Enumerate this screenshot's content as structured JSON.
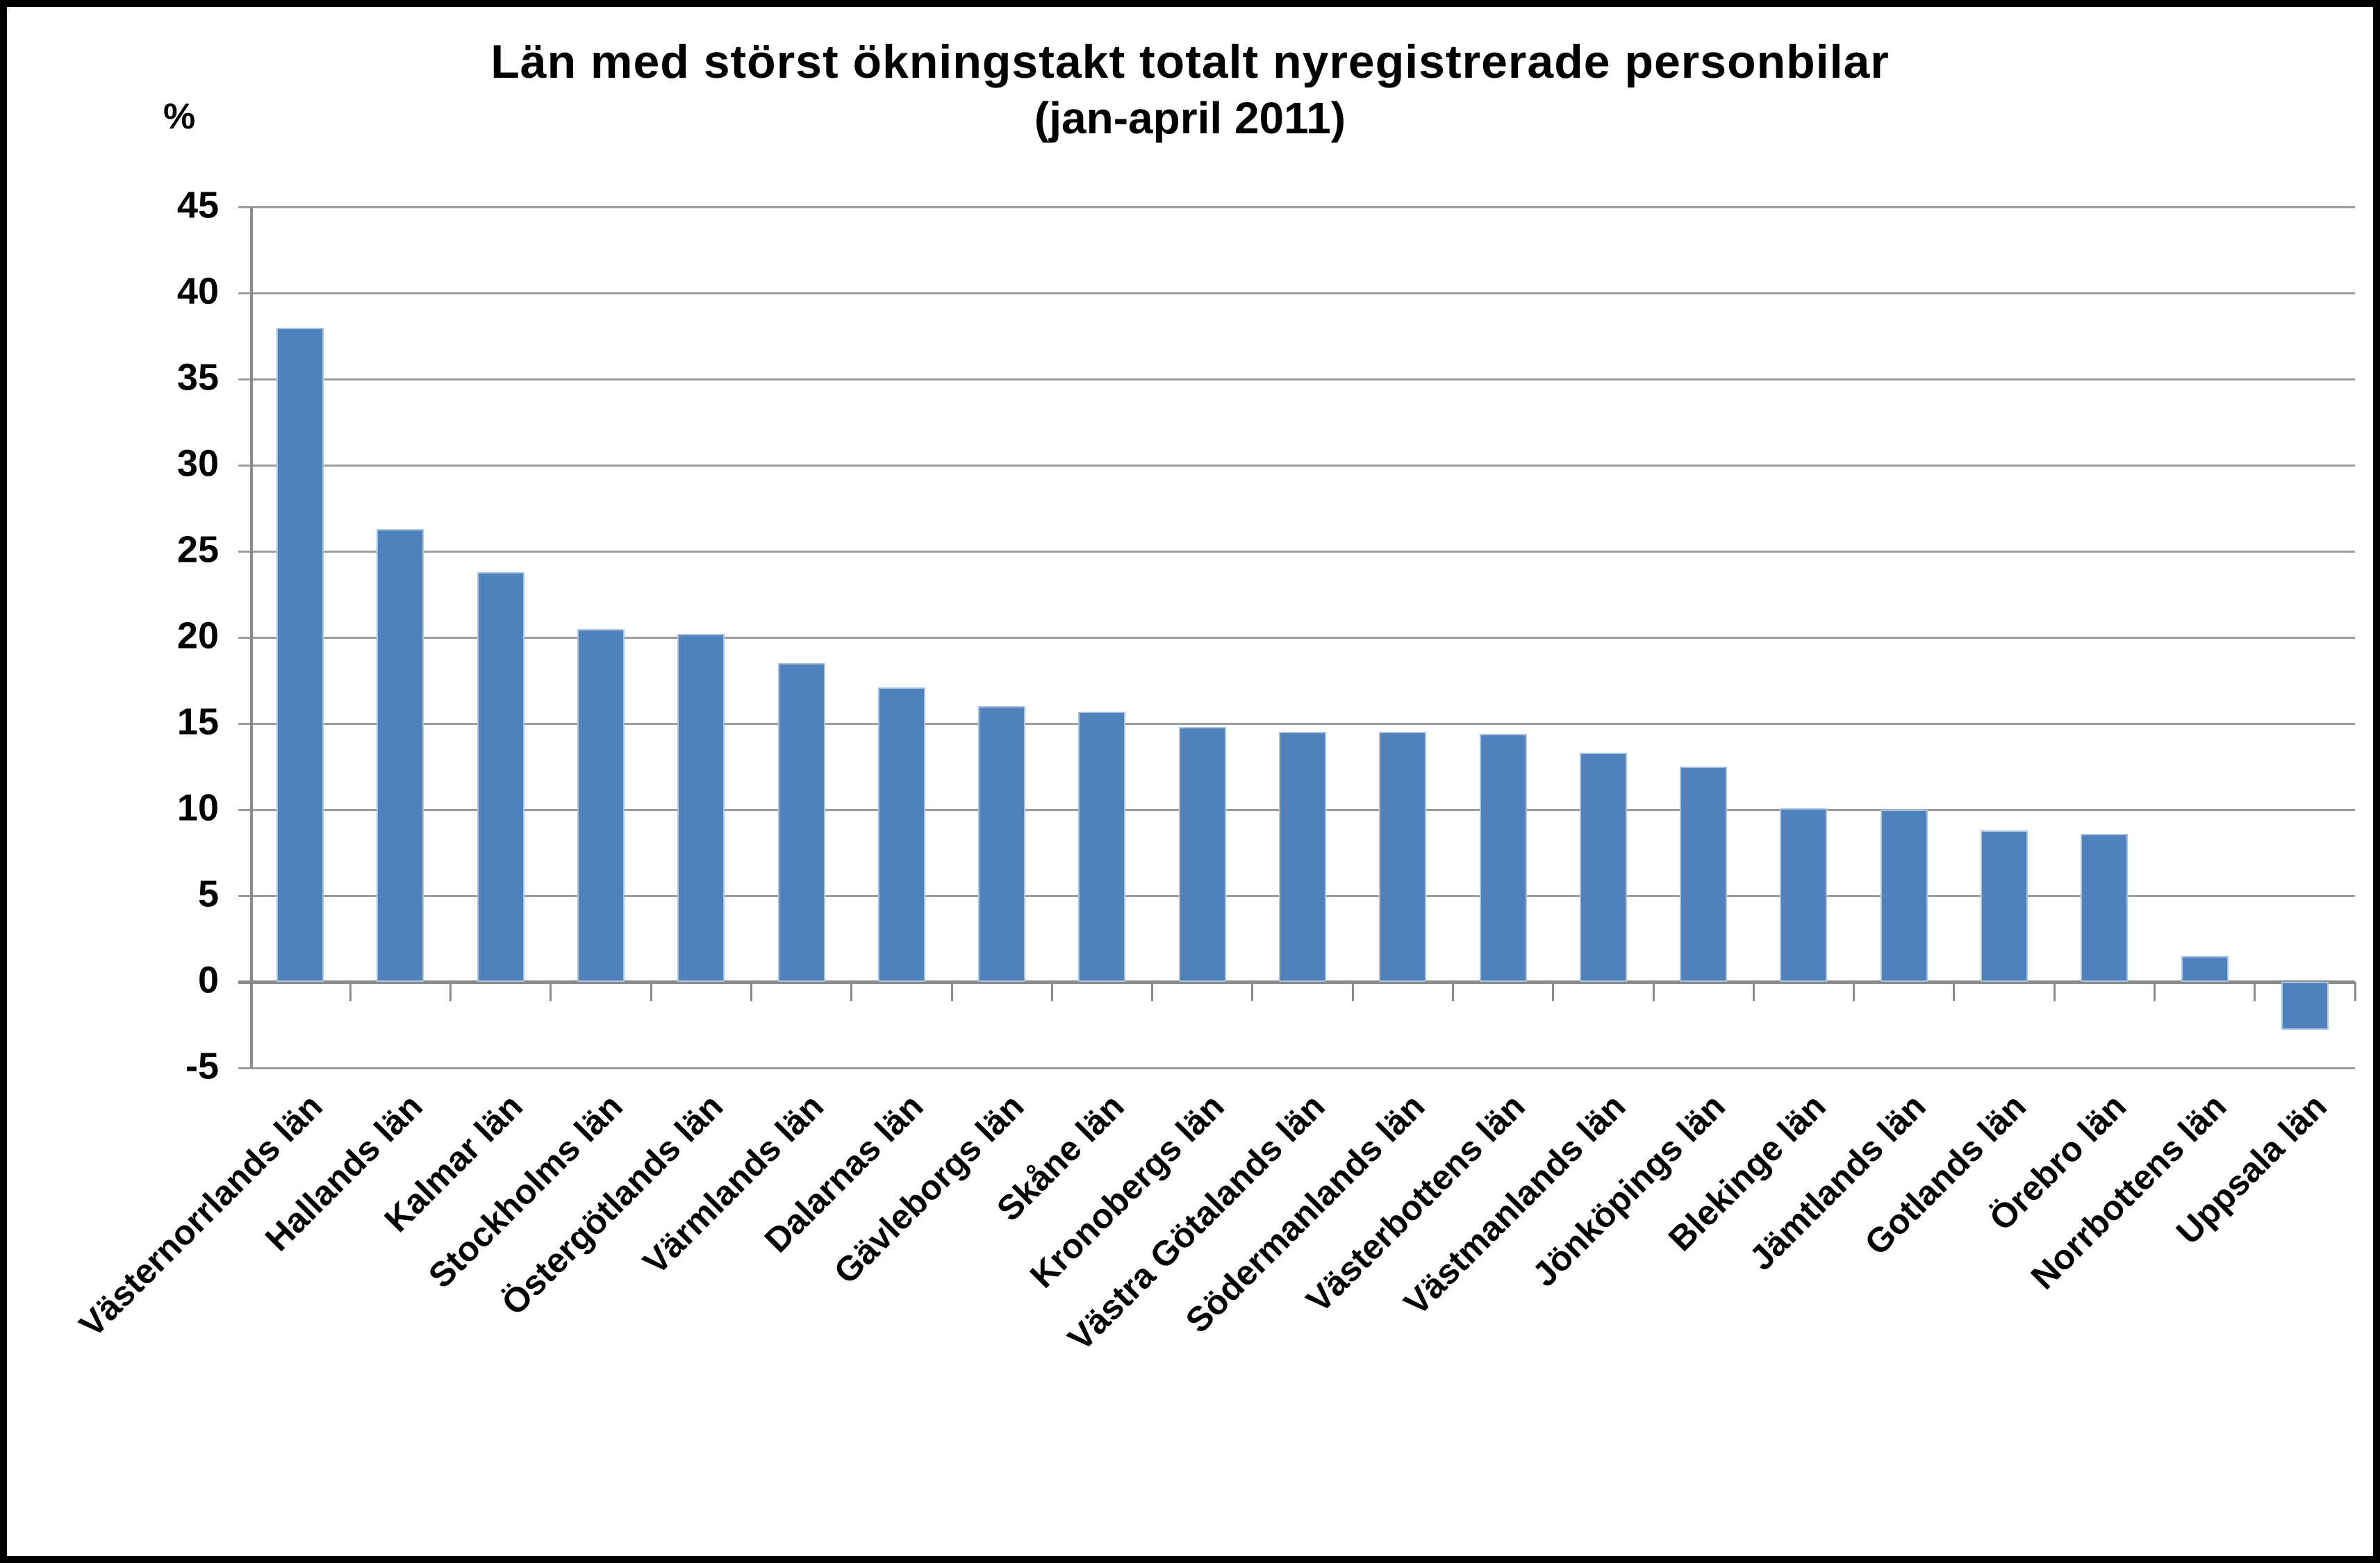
{
  "chart_data": {
    "type": "bar",
    "title": "Län med störst ökningstakt totalt nyregistrerade personbilar",
    "subtitle": "(jan-april 2011)",
    "ylabel": "%",
    "xlabel": "",
    "categories": [
      "Västernorrlands län",
      "Hallands län",
      "Kalmar län",
      "Stockholms län",
      "Östergötlands län",
      "Värmlands län",
      "Dalarnas län",
      "Gävleborgs län",
      "Skåne län",
      "Kronobergs län",
      "Västra Götalands län",
      "Södermanlands län",
      "Västerbottens län",
      "Västmanlands län",
      "Jönköpings län",
      "Blekinge län",
      "Jämtlands län",
      "Gotlands län",
      "Örebro län",
      "Norrbottens län",
      "Uppsala län"
    ],
    "values": [
      38.0,
      26.3,
      23.8,
      20.5,
      20.2,
      18.5,
      17.1,
      16.0,
      15.7,
      14.8,
      14.5,
      14.5,
      14.4,
      13.3,
      12.5,
      10.1,
      10.0,
      8.8,
      8.6,
      1.5,
      -2.8
    ],
    "ylim": [
      -5,
      45
    ],
    "ytick_step": 5,
    "yticks": [
      45,
      40,
      35,
      30,
      25,
      20,
      15,
      10,
      5,
      0,
      -5
    ],
    "grid": true,
    "legend": "none",
    "colors": {
      "bar": "#4F81BD",
      "bar_border": "#A9C4E0",
      "gridline": "#9C9C9C",
      "axis": "#8A8A8A",
      "text": "#000000",
      "background": "#FFFFFF",
      "frame_border": "#000000"
    }
  }
}
